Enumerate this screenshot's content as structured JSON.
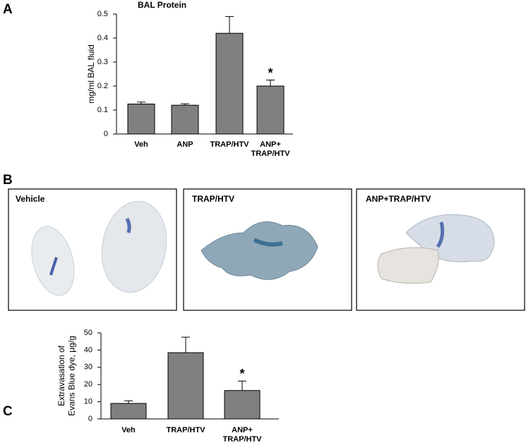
{
  "panel_labels": [
    "A",
    "B",
    "C"
  ],
  "photos": [
    "Vehicle",
    "TRAP/HTV",
    "ANP+TRAP/HTV"
  ],
  "chart_data": [
    {
      "type": "bar",
      "title": "BAL Protein",
      "y_label": "mg/ml BAL fluid",
      "categories": [
        "Veh",
        "ANP",
        "TRAP/HTV",
        "ANP+\nTRAP/HTV"
      ],
      "values": [
        0.125,
        0.12,
        0.42,
        0.2
      ],
      "errors": [
        0.008,
        0.006,
        0.07,
        0.025
      ],
      "color": "#808080",
      "ylim": [
        0,
        0.5
      ],
      "yticks": [
        0,
        0.1,
        0.2,
        0.3,
        0.4,
        0.5
      ],
      "annotation": {
        "text": "*",
        "index": 3
      }
    },
    {
      "type": "bar",
      "y_label": "Extravasation of\nEvans Blue dye, μg/g",
      "categories": [
        "Veh",
        "TRAP/HTV",
        "ANP+\nTRAP/HTV"
      ],
      "values": [
        9,
        38.5,
        16.5
      ],
      "errors": [
        1.5,
        9,
        5.5
      ],
      "color": "#808080",
      "ylim": [
        0,
        50
      ],
      "yticks": [
        0,
        10,
        20,
        30,
        40,
        50
      ],
      "annotation": {
        "text": "*",
        "index": 2
      }
    }
  ]
}
